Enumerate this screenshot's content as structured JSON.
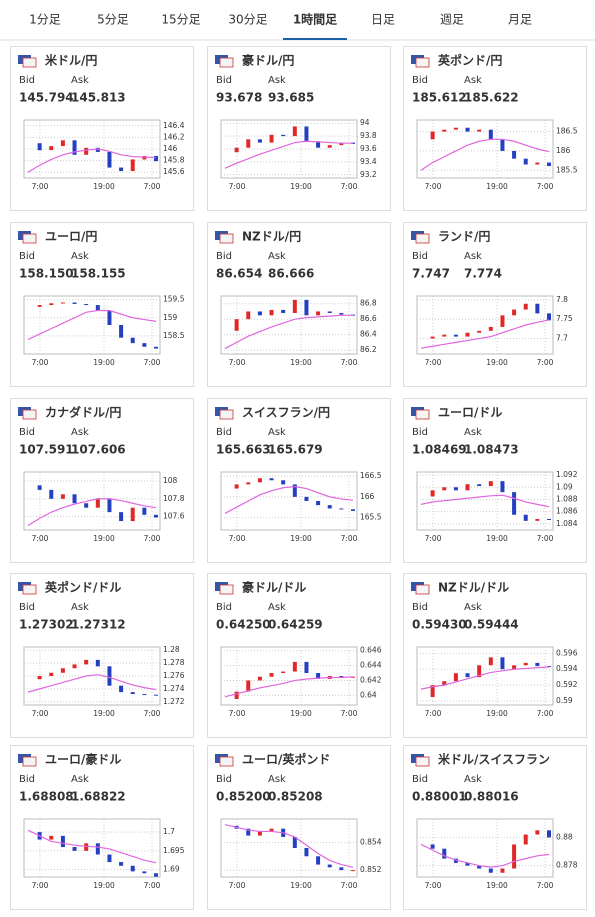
{
  "tabs": [
    "1分足",
    "5分足",
    "15分足",
    "30分足",
    "1時間足",
    "日足",
    "週足",
    "月足"
  ],
  "active_tab": 4,
  "bid_label": "Bid",
  "ask_label": "Ask",
  "x_labels": [
    "7:00",
    "19:00",
    "7:00"
  ],
  "panels": [
    {
      "title": "米ドル/円",
      "color": "#5c2d91",
      "bid": "145.794",
      "ask": "145.813",
      "ylim": [
        145.5,
        146.5
      ],
      "yticks": [
        146.4,
        146.2,
        146,
        145.8,
        145.6
      ],
      "close": [
        146.1,
        145.98,
        146.05,
        146.15,
        145.9,
        146.02,
        145.95,
        145.68,
        145.62,
        145.82,
        145.88,
        145.79
      ],
      "ma": [
        145.6,
        145.72,
        145.82,
        145.9,
        145.95,
        145.98,
        146.0,
        145.96,
        145.9,
        145.87,
        145.86,
        145.85
      ]
    },
    {
      "title": "豪ドル/円",
      "color": "#5c2d91",
      "bid": "93.678",
      "ask": "93.685",
      "ylim": [
        93.15,
        94.05
      ],
      "yticks": [
        94,
        93.8,
        93.6,
        93.4,
        93.2
      ],
      "close": [
        93.55,
        93.62,
        93.75,
        93.7,
        93.82,
        93.8,
        93.95,
        93.72,
        93.62,
        93.66,
        93.7,
        93.68
      ],
      "ma": [
        93.3,
        93.38,
        93.45,
        93.52,
        93.58,
        93.64,
        93.7,
        93.72,
        93.71,
        93.7,
        93.69,
        93.69
      ]
    },
    {
      "title": "英ポンド/円",
      "color": "#5c2d91",
      "bid": "185.612",
      "ask": "185.622",
      "ylim": [
        185.3,
        186.8
      ],
      "yticks": [
        186.5,
        186,
        185.5
      ],
      "close": [
        186.3,
        186.5,
        186.55,
        186.6,
        186.5,
        186.55,
        186.3,
        186.0,
        185.8,
        185.65,
        185.7,
        185.61
      ],
      "ma": [
        185.5,
        185.7,
        185.85,
        186.0,
        186.15,
        186.25,
        186.3,
        186.3,
        186.25,
        186.15,
        186.05,
        185.98
      ]
    },
    {
      "title": "ユーロ/円",
      "color": "#1a5fa8",
      "bid": "158.150",
      "ask": "158.155",
      "ylim": [
        158,
        159.6
      ],
      "yticks": [
        159.5,
        159,
        158.5
      ],
      "close": [
        159.3,
        159.35,
        159.4,
        159.42,
        159.38,
        159.35,
        159.2,
        158.8,
        158.45,
        158.3,
        158.2,
        158.15
      ],
      "ma": [
        158.4,
        158.55,
        158.7,
        158.85,
        159.0,
        159.15,
        159.2,
        159.2,
        159.1,
        159.0,
        158.95,
        158.9
      ]
    },
    {
      "title": "NZドル/円",
      "color": "#1a5fa8",
      "bid": "86.654",
      "ask": "86.666",
      "ylim": [
        86.15,
        86.9
      ],
      "yticks": [
        86.8,
        86.6,
        86.4,
        86.2
      ],
      "close": [
        86.45,
        86.6,
        86.7,
        86.65,
        86.72,
        86.68,
        86.85,
        86.65,
        86.7,
        86.68,
        86.66,
        86.65
      ],
      "ma": [
        86.22,
        86.3,
        86.38,
        86.44,
        86.5,
        86.55,
        86.6,
        86.62,
        86.63,
        86.64,
        86.65,
        86.65
      ]
    },
    {
      "title": "ランド/円",
      "color": "#5c2d91",
      "bid": "7.747",
      "ask": "7.774",
      "ylim": [
        7.66,
        7.81
      ],
      "yticks": [
        7.8,
        7.75,
        7.7
      ],
      "close": [
        7.7,
        7.705,
        7.71,
        7.705,
        7.715,
        7.72,
        7.73,
        7.76,
        7.775,
        7.79,
        7.765,
        7.747
      ],
      "ma": [
        7.675,
        7.68,
        7.685,
        7.69,
        7.695,
        7.7,
        7.705,
        7.715,
        7.725,
        7.735,
        7.742,
        7.748
      ]
    },
    {
      "title": "カナダドル/円",
      "color": "#5c2d91",
      "bid": "107.591",
      "ask": "107.606",
      "ylim": [
        107.45,
        108.1
      ],
      "yticks": [
        108,
        107.8,
        107.6
      ],
      "close": [
        107.95,
        107.9,
        107.8,
        107.85,
        107.75,
        107.7,
        107.8,
        107.65,
        107.55,
        107.7,
        107.62,
        107.59
      ],
      "ma": [
        107.5,
        107.58,
        107.65,
        107.7,
        107.74,
        107.77,
        107.8,
        107.8,
        107.78,
        107.75,
        107.72,
        107.7
      ]
    },
    {
      "title": "スイスフラン/円",
      "color": "#1a5fa8",
      "bid": "165.663",
      "ask": "165.679",
      "ylim": [
        165.2,
        166.6
      ],
      "yticks": [
        166.5,
        166,
        165.5
      ],
      "close": [
        166.2,
        166.3,
        166.35,
        166.45,
        166.4,
        166.3,
        166.0,
        165.9,
        165.8,
        165.72,
        165.7,
        165.66
      ],
      "ma": [
        165.6,
        165.75,
        165.9,
        166.05,
        166.15,
        166.22,
        166.25,
        166.2,
        166.1,
        166.0,
        165.95,
        165.92
      ]
    },
    {
      "title": "ユーロ/ドル",
      "color": "#1a5fa8",
      "bid": "1.08469",
      "ask": "1.08473",
      "ylim": [
        1.083,
        1.0925
      ],
      "yticks": [
        1.092,
        1.09,
        1.088,
        1.086,
        1.084
      ],
      "close": [
        1.0885,
        1.0895,
        1.09,
        1.0895,
        1.0905,
        1.0902,
        1.091,
        1.0892,
        1.0855,
        1.0845,
        1.0848,
        1.0847
      ],
      "ma": [
        1.0872,
        1.0876,
        1.0878,
        1.088,
        1.0882,
        1.0884,
        1.0886,
        1.0887,
        1.0882,
        1.0876,
        1.0872,
        1.0868
      ]
    },
    {
      "title": "英ポンド/ドル",
      "color": "#1a5fa8",
      "bid": "1.27302",
      "ask": "1.27312",
      "ylim": [
        1.2715,
        1.2805
      ],
      "yticks": [
        1.28,
        1.278,
        1.276,
        1.274,
        1.272
      ],
      "close": [
        1.2755,
        1.276,
        1.2765,
        1.2772,
        1.2778,
        1.2785,
        1.2775,
        1.2745,
        1.2735,
        1.2732,
        1.2731,
        1.273
      ],
      "ma": [
        1.2735,
        1.274,
        1.2745,
        1.275,
        1.2755,
        1.276,
        1.2762,
        1.2758,
        1.2752,
        1.2746,
        1.2742,
        1.2739
      ]
    },
    {
      "title": "豪ドル/ドル",
      "color": "#1a5fa8",
      "bid": "0.64250",
      "ask": "0.64259",
      "ylim": [
        0.6387,
        0.6465
      ],
      "yticks": [
        0.646,
        0.644,
        0.642,
        0.64
      ],
      "close": [
        0.6395,
        0.6405,
        0.642,
        0.6425,
        0.643,
        0.6432,
        0.6445,
        0.643,
        0.6422,
        0.6426,
        0.6425,
        0.6425
      ],
      "ma": [
        0.6398,
        0.6402,
        0.6406,
        0.641,
        0.6413,
        0.6416,
        0.642,
        0.6422,
        0.6423,
        0.6424,
        0.6424,
        0.6425
      ]
    },
    {
      "title": "NZドル/ドル",
      "color": "#1a5fa8",
      "bid": "0.59430",
      "ask": "0.59444",
      "ylim": [
        0.5895,
        0.5968
      ],
      "yticks": [
        0.596,
        0.594,
        0.592,
        0.59
      ],
      "close": [
        0.5905,
        0.592,
        0.5925,
        0.5935,
        0.593,
        0.5945,
        0.5955,
        0.594,
        0.5945,
        0.5948,
        0.5944,
        0.5943
      ],
      "ma": [
        0.5915,
        0.5918,
        0.592,
        0.5924,
        0.5928,
        0.5932,
        0.5936,
        0.5938,
        0.594,
        0.5941,
        0.5942,
        0.5943
      ]
    },
    {
      "title": "ユーロ/豪ドル",
      "color": "#1a5fa8",
      "bid": "1.68808",
      "ask": "1.68822",
      "ylim": [
        1.688,
        1.7035
      ],
      "yticks": [
        1.7,
        1.695,
        1.69
      ],
      "close": [
        1.7,
        1.698,
        1.699,
        1.696,
        1.695,
        1.697,
        1.694,
        1.692,
        1.691,
        1.6895,
        1.689,
        1.6881
      ],
      "ma": [
        1.7005,
        1.699,
        1.6975,
        1.697,
        1.6965,
        1.6962,
        1.696,
        1.6955,
        1.6945,
        1.6935,
        1.6925,
        1.6918
      ]
    },
    {
      "title": "ユーロ/英ポンド",
      "color": "#1a5fa8",
      "bid": "0.85200",
      "ask": "0.85208",
      "ylim": [
        0.8515,
        0.8557
      ],
      "yticks": [
        0.854,
        0.852
      ],
      "close": [
        0.8552,
        0.855,
        0.8545,
        0.8548,
        0.855,
        0.8544,
        0.8536,
        0.853,
        0.8524,
        0.8522,
        0.852,
        0.852
      ],
      "ma": [
        0.8553,
        0.8551,
        0.8549,
        0.8548,
        0.8548,
        0.8547,
        0.8544,
        0.8538,
        0.8532,
        0.8527,
        0.8524,
        0.8522
      ]
    },
    {
      "title": "米ドル/スイスフラン",
      "color": "#1a5fa8",
      "bid": "0.88001",
      "ask": "0.88016",
      "ylim": [
        0.8772,
        0.8813
      ],
      "yticks": [
        0.88,
        0.878
      ],
      "close": [
        0.8795,
        0.8792,
        0.8785,
        0.8782,
        0.878,
        0.8778,
        0.8775,
        0.8778,
        0.8795,
        0.8802,
        0.8805,
        0.88
      ],
      "ma": [
        0.8795,
        0.8791,
        0.8787,
        0.8784,
        0.8782,
        0.878,
        0.8779,
        0.878,
        0.8783,
        0.8785,
        0.8787,
        0.8788
      ]
    }
  ]
}
